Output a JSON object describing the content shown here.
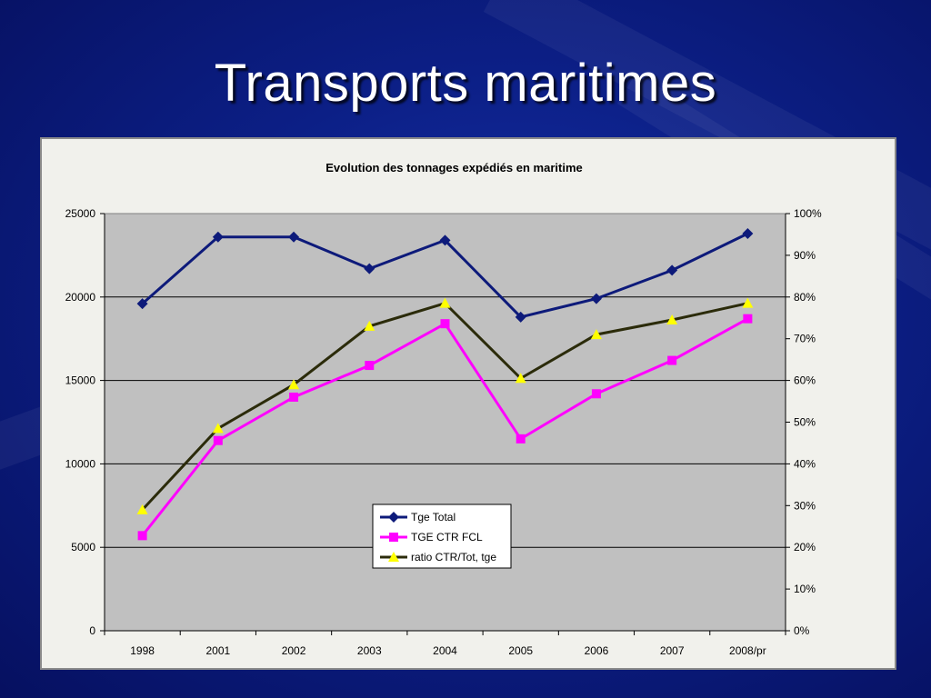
{
  "slide": {
    "title": "Transports maritimes"
  },
  "chart_data": {
    "type": "line",
    "title": "Evolution des tonnages expédiés en maritime",
    "categories": [
      "1998",
      "2001",
      "2002",
      "2003",
      "2004",
      "2005",
      "2006",
      "2007",
      "2008/pr"
    ],
    "y_left": {
      "ylim": [
        0,
        25000
      ],
      "ticks": [
        "0",
        "5000",
        "10000",
        "15000",
        "20000",
        "25000"
      ]
    },
    "y_right": {
      "ylim": [
        0,
        1
      ],
      "ticks": [
        "0%",
        "10%",
        "20%",
        "30%",
        "40%",
        "50%",
        "60%",
        "70%",
        "80%",
        "90%",
        "100%"
      ]
    },
    "grid": "horizontal major lines",
    "legend_position": "lower center",
    "series": [
      {
        "name": "Tge Total",
        "axis": "left",
        "color": "#0d1a7a",
        "marker": "diamond",
        "values": [
          19600,
          23600,
          23600,
          21700,
          23400,
          18800,
          19900,
          21600,
          23800
        ]
      },
      {
        "name": "TGE CTR FCL",
        "axis": "left",
        "color": "#ff00ff",
        "marker": "square",
        "values": [
          5700,
          11400,
          14000,
          15900,
          18400,
          11500,
          14200,
          16200,
          18700
        ]
      },
      {
        "name": "ratio CTR/Tot, tge",
        "axis": "right",
        "color": "#2b2b0a",
        "marker_color": "#ffff00",
        "marker": "triangle",
        "values": [
          0.29,
          0.485,
          0.59,
          0.73,
          0.785,
          0.605,
          0.71,
          0.745,
          0.785
        ]
      }
    ]
  }
}
